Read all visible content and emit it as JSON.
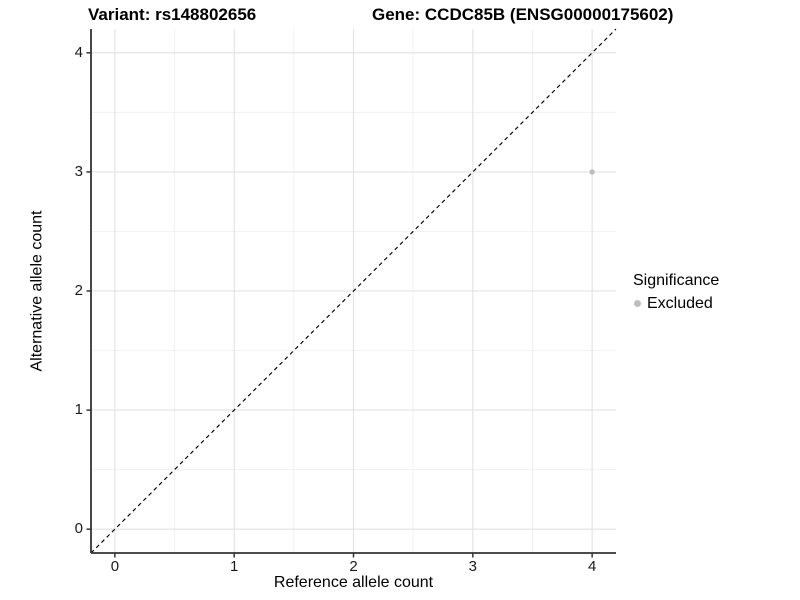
{
  "chart_data": {
    "type": "scatter",
    "title_left": "Variant: rs148802656",
    "title_right": "Gene: CCDC85B (ENSG00000175602)",
    "xlabel": "Reference allele count",
    "ylabel": "Alternative allele count",
    "xlim": [
      -0.2,
      4.2
    ],
    "ylim": [
      -0.2,
      4.2
    ],
    "xticks": [
      0,
      1,
      2,
      3,
      4
    ],
    "yticks": [
      0,
      1,
      2,
      3,
      4
    ],
    "x_minor_ticks": [
      0.5,
      1.5,
      2.5,
      3.5
    ],
    "y_minor_ticks": [
      0.5,
      1.5,
      2.5,
      3.5
    ],
    "grid": "major+minor",
    "points": [
      {
        "x": 4,
        "y": 3,
        "significance": "Excluded"
      }
    ],
    "reference_line": {
      "shape": "identity",
      "style": "dashed",
      "x": [
        -0.2,
        4.2
      ],
      "y": [
        -0.2,
        4.2
      ]
    },
    "legend": {
      "position": "right",
      "title": "Significance",
      "entries": [
        {
          "label": "Excluded",
          "color": "#bdbdbd"
        }
      ]
    },
    "colors": {
      "point": "#bdbdbd",
      "reference_line": "#000000",
      "grid_major": "#e2e2e2",
      "grid_minor": "#f0f0f0",
      "axis_line": "#333333",
      "tick": "#333333",
      "background": "#ffffff"
    }
  }
}
